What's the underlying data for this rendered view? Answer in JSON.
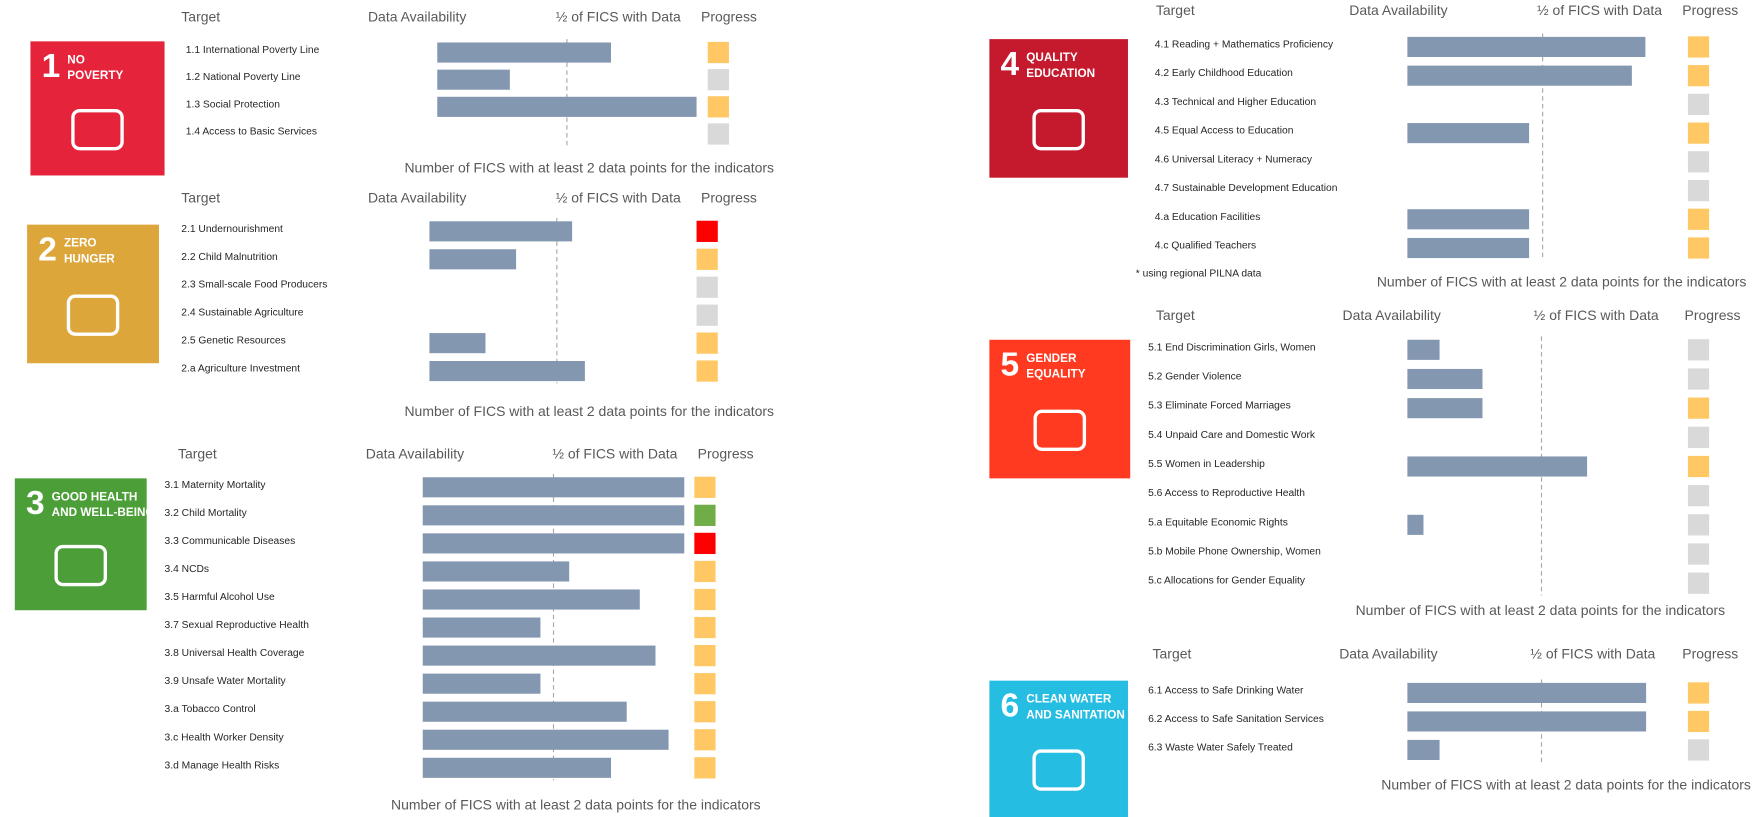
{
  "chart_data": [
    {
      "type": "bar",
      "orientation": "horizontal",
      "goal_number": "1",
      "goal_name": [
        "NO",
        "POVERTY"
      ],
      "icon_color": "#e5243b",
      "headers": {
        "target": "Target",
        "data_availability": "Data Availability",
        "half_marker": "½ of FICS with Data",
        "progress": "Progress"
      },
      "categories": [
        "1.1 International Poverty Line",
        "1.2 National Poverty Line",
        "1.3 Social Protection",
        "1.4 Access to Basic Services"
      ],
      "values": [
        67,
        28,
        100,
        null
      ],
      "color": "#8497b0",
      "progress": [
        "#ffc864",
        "#d9d9d9",
        "#ffc864",
        "#d9d9d9"
      ],
      "xlim": [
        0,
        100
      ],
      "half_value": 50,
      "x_label": "Number of FICS with at least 2 data points for the indicators"
    },
    {
      "type": "bar",
      "orientation": "horizontal",
      "goal_number": "2",
      "goal_name": [
        "ZERO",
        "HUNGER"
      ],
      "icon_color": "#dda63a",
      "headers": {
        "target": "Target",
        "data_availability": "Data Availability",
        "half_marker": "½ of FICS with Data",
        "progress": "Progress"
      },
      "categories": [
        "2.1 Undernourishment",
        "2.2 Child Malnutrition",
        "2.3 Small-scale Food Producers",
        "2.4 Sustainable Agriculture",
        "2.5 Genetic Resources",
        "2.a Agriculture Investment"
      ],
      "values": [
        56,
        34,
        null,
        null,
        22,
        61
      ],
      "color": "#8497b0",
      "progress": [
        "#ff0000",
        "#ffc864",
        "#d9d9d9",
        "#d9d9d9",
        "#ffc864",
        "#ffc864"
      ],
      "xlim": [
        0,
        100
      ],
      "half_value": 50,
      "x_label": "Number of FICS with at least 2 data points for the indicators"
    },
    {
      "type": "bar",
      "orientation": "horizontal",
      "goal_number": "3",
      "goal_name": [
        "GOOD HEALTH",
        "AND WELL-BEING"
      ],
      "icon_color": "#4c9f38",
      "headers": {
        "target": "Target",
        "data_availability": "Data Availability",
        "half_marker": "½ of FICS with Data",
        "progress": "Progress"
      },
      "categories": [
        "3.1 Maternity Mortality",
        "3.2 Child Mortality",
        "3.3 Communicable Diseases",
        "3.4 NCDs",
        "3.5 Harmful Alcohol Use",
        "3.7 Sexual Reproductive Health",
        "3.8 Universal Health Coverage",
        "3.9 Unsafe Water Mortality",
        "3.a Tobacco Control",
        "3.c Health Worker Density",
        "3.d Manage Health Risks"
      ],
      "values": [
        100,
        100,
        100,
        56,
        83,
        45,
        89,
        45,
        78,
        94,
        72
      ],
      "color": "#8497b0",
      "progress": [
        "#ffc864",
        "#70ad47",
        "#ff0000",
        "#ffc864",
        "#ffc864",
        "#ffc864",
        "#ffc864",
        "#ffc864",
        "#ffc864",
        "#ffc864",
        "#ffc864"
      ],
      "xlim": [
        0,
        100
      ],
      "half_value": 50,
      "x_label": "Number of FICS with at least 2 data points for the indicators"
    },
    {
      "type": "bar",
      "orientation": "horizontal",
      "goal_number": "4",
      "goal_name": [
        "QUALITY",
        "EDUCATION"
      ],
      "icon_color": "#c5192d",
      "headers": {
        "target": "Target",
        "data_availability": "Data Availability",
        "half_marker": "½ of FICS with Data",
        "progress": "Progress"
      },
      "categories": [
        "4.1 Reading + Mathematics Proficiency",
        "4.2 Early Childhood Education",
        "4.3 Technical and Higher Education",
        "4.5 Equal Access to Education",
        "4.6 Universal Literacy + Numeracy",
        "4.7 Sustainable Development Education",
        "4.a Education Facilities",
        "4.c Qualified Teachers"
      ],
      "values": [
        88,
        83,
        null,
        45,
        null,
        null,
        45,
        45
      ],
      "color": "#8497b0",
      "progress": [
        "#ffc864",
        "#ffc864",
        "#d9d9d9",
        "#ffc864",
        "#d9d9d9",
        "#d9d9d9",
        "#ffc864",
        "#ffc864"
      ],
      "xlim": [
        0,
        100
      ],
      "half_value": 50,
      "footnote": "* using regional PILNA data",
      "x_label": "Number of FICS with at least 2 data points for the indicators"
    },
    {
      "type": "bar",
      "orientation": "horizontal",
      "goal_number": "5",
      "goal_name": [
        "GENDER",
        "EQUALITY"
      ],
      "icon_color": "#ff3a21",
      "headers": {
        "target": "Target",
        "data_availability": "Data Availability",
        "half_marker": "½ of FICS with Data",
        "progress": "Progress"
      },
      "categories": [
        "5.1 End Discrimination Girls, Women",
        "5.2 Gender Violence",
        "5.3 Eliminate Forced Marriages",
        "5.4 Unpaid Care and Domestic Work",
        "5.5 Women in Leadership",
        "5.6 Access to Reproductive Health",
        "5.a Equitable Economic Rights",
        "5.b Mobile Phone Ownership, Women",
        "5.c Allocations for Gender Equality"
      ],
      "values": [
        12,
        28,
        28,
        null,
        67,
        null,
        6,
        null,
        null
      ],
      "color": "#8497b0",
      "progress": [
        "#d9d9d9",
        "#d9d9d9",
        "#ffc864",
        "#d9d9d9",
        "#ffc864",
        "#d9d9d9",
        "#d9d9d9",
        "#d9d9d9",
        "#d9d9d9"
      ],
      "xlim": [
        0,
        100
      ],
      "half_value": 50,
      "x_label": "Number of FICS with at least 2 data points for the indicators"
    },
    {
      "type": "bar",
      "orientation": "horizontal",
      "goal_number": "6",
      "goal_name": [
        "CLEAN WATER",
        "AND SANITATION"
      ],
      "icon_color": "#26bde2",
      "headers": {
        "target": "Target",
        "data_availability": "Data Availability",
        "half_marker": "½ of FICS with Data",
        "progress": "Progress"
      },
      "categories": [
        "6.1 Access to Safe Drinking Water",
        "6.2 Access to Safe Sanitation Services",
        "6.3 Waste Water Safely Treated"
      ],
      "values": [
        89,
        89,
        12
      ],
      "color": "#8497b0",
      "progress": [
        "#ffc864",
        "#ffc864",
        "#d9d9d9"
      ],
      "xlim": [
        0,
        100
      ],
      "half_value": 50,
      "x_label": "Number of FICS with at least 2 data points for the indicators"
    }
  ]
}
